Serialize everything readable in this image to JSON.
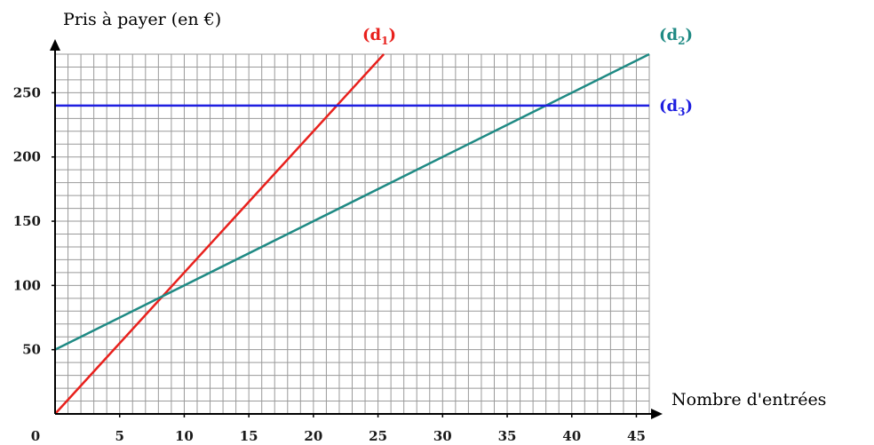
{
  "chart_data": {
    "type": "line",
    "ylabel": "Pris à payer (en €)",
    "xlabel": "Nombre d'entrées",
    "xlim": [
      0,
      46
    ],
    "ylim": [
      0,
      280
    ],
    "origin_label": "0",
    "x_ticks": [
      5,
      10,
      15,
      20,
      25,
      30,
      35,
      40,
      45
    ],
    "y_ticks": [
      50,
      100,
      150,
      200,
      250
    ],
    "grid": true,
    "series": [
      {
        "name": "(d1)",
        "label_main": "(d",
        "label_sub": "1",
        "label_close": ")",
        "color": "#e8211d",
        "x": [
          0,
          25.45
        ],
        "y": [
          0,
          280
        ]
      },
      {
        "name": "(d2)",
        "label_main": "(d",
        "label_sub": "2",
        "label_close": ")",
        "color": "#1f8a84",
        "x": [
          0,
          46
        ],
        "y": [
          50,
          280
        ]
      },
      {
        "name": "(d3)",
        "label_main": "(d",
        "label_sub": "3",
        "label_close": ")",
        "color": "#1f1fe0",
        "x": [
          0,
          46
        ],
        "y": [
          240,
          240
        ]
      }
    ]
  }
}
